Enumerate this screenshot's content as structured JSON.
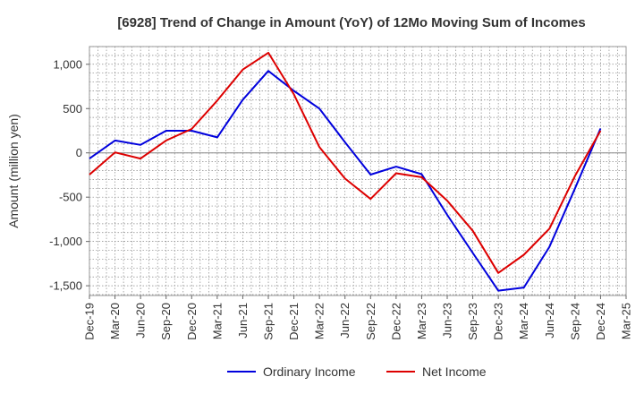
{
  "chart_data": {
    "type": "line",
    "title": "[6928]  Trend of Change in Amount (YoY) of 12Mo Moving Sum of Incomes",
    "ylabel": "Amount (million yen)",
    "xlabel": "",
    "categories": [
      "Dec-19",
      "Mar-20",
      "Jun-20",
      "Sep-20",
      "Dec-20",
      "Mar-21",
      "Jun-21",
      "Sep-21",
      "Dec-21",
      "Mar-22",
      "Jun-22",
      "Sep-22",
      "Dec-22",
      "Mar-23",
      "Jun-23",
      "Sep-23",
      "Dec-23",
      "Mar-24",
      "Jun-24",
      "Sep-24",
      "Dec-24",
      "Mar-25"
    ],
    "yticks": [
      -1500,
      -1000,
      -500,
      0,
      500,
      1000
    ],
    "ytick_labels": [
      "-1,500",
      "-1,000",
      "-500",
      "0",
      "500",
      "1,000"
    ],
    "ylim": [
      -1610,
      1200
    ],
    "grid": true,
    "legend_position": "bottom",
    "series": [
      {
        "name": "Ordinary Income",
        "color": "#0000dd",
        "values": [
          -65,
          140,
          90,
          250,
          250,
          175,
          600,
          925,
          700,
          500,
          120,
          -245,
          -155,
          -240,
          -700,
          -1130,
          -1555,
          -1520,
          -1060,
          -400,
          275,
          null
        ]
      },
      {
        "name": "Net Income",
        "color": "#dd0000",
        "values": [
          -245,
          5,
          -65,
          140,
          270,
          590,
          940,
          1130,
          660,
          65,
          -290,
          -520,
          -230,
          -275,
          -540,
          -880,
          -1355,
          -1150,
          -855,
          -260,
          250,
          null
        ]
      }
    ]
  }
}
